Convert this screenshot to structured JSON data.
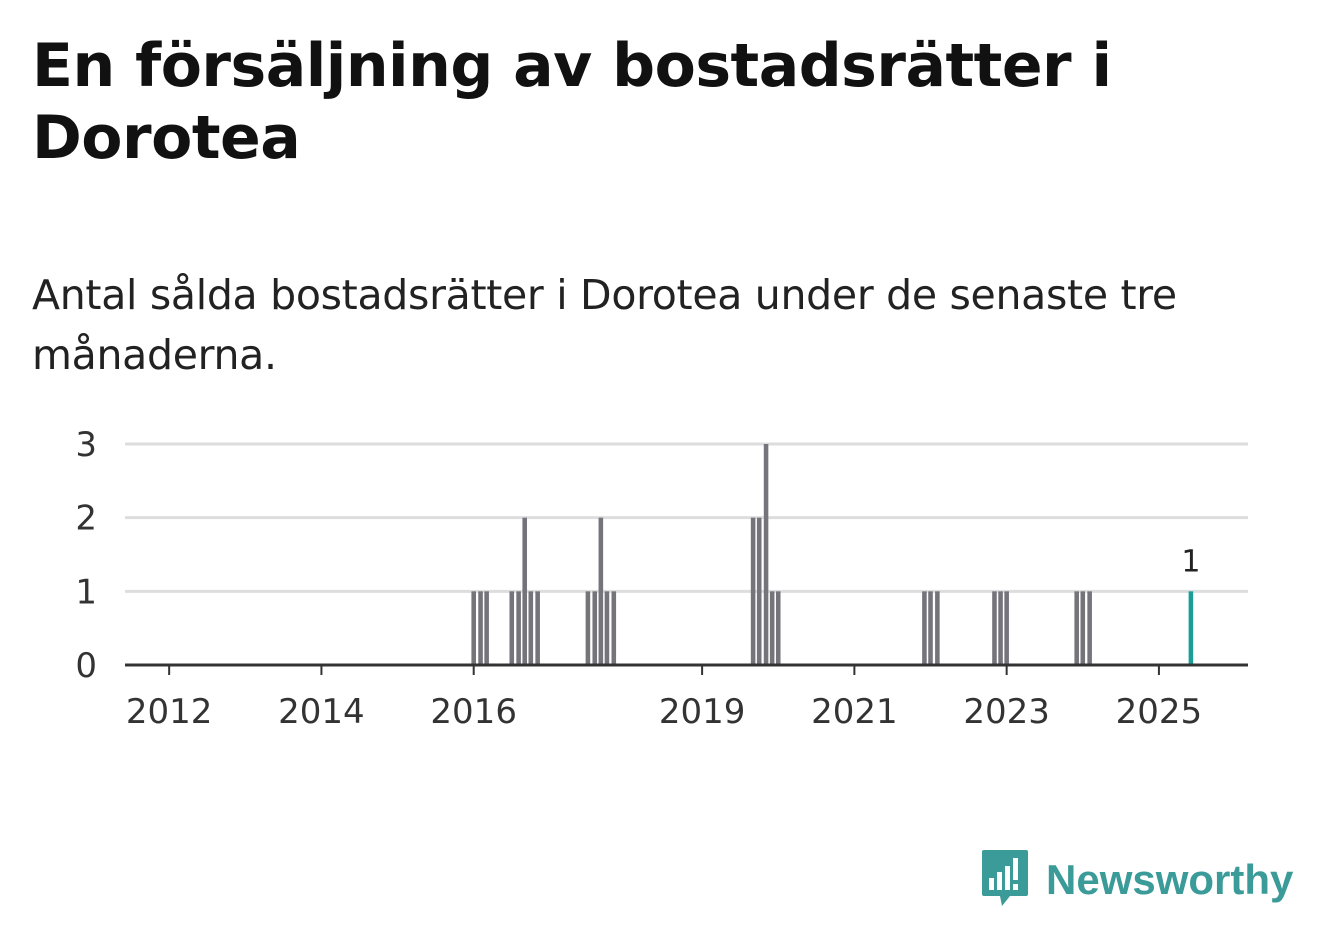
{
  "title": "En försäljning av bostadsrätter i Dorotea",
  "subtitle": "Antal sålda bostadsrätter i Dorotea under de senaste tre månaderna.",
  "brand": {
    "name": "Newsworthy",
    "color": "#3a9b98"
  },
  "colors": {
    "bar": "#75747b",
    "highlight": "#1a9e96",
    "grid": "#dddddd",
    "axis": "#333333"
  },
  "chart_data": {
    "type": "bar",
    "title": "En försäljning av bostadsrätter i Dorotea",
    "xlabel": "",
    "ylabel": "",
    "ylim": [
      0,
      3
    ],
    "yticks": [
      0,
      1,
      2,
      3
    ],
    "xlim": [
      2011.75,
      2026.5
    ],
    "xticks": [
      {
        "label": "2012",
        "value": 2012.33
      },
      {
        "label": "2014",
        "value": 2014.33
      },
      {
        "label": "2016",
        "value": 2016.33
      },
      {
        "label": "2019",
        "value": 2019.33
      },
      {
        "label": "2021",
        "value": 2021.33
      },
      {
        "label": "2023",
        "value": 2023.33
      },
      {
        "label": "2025",
        "value": 2025.33
      }
    ],
    "month_width": 0.0833,
    "series": [
      {
        "name": "Antal sålda bostadsrätter",
        "points": [
          {
            "t": 2016.33,
            "v": 1
          },
          {
            "t": 2016.42,
            "v": 1
          },
          {
            "t": 2016.5,
            "v": 1
          },
          {
            "t": 2016.83,
            "v": 1
          },
          {
            "t": 2016.92,
            "v": 1
          },
          {
            "t": 2017.0,
            "v": 2
          },
          {
            "t": 2017.08,
            "v": 1
          },
          {
            "t": 2017.17,
            "v": 1
          },
          {
            "t": 2017.83,
            "v": 1
          },
          {
            "t": 2017.92,
            "v": 1
          },
          {
            "t": 2018.0,
            "v": 2
          },
          {
            "t": 2018.08,
            "v": 1
          },
          {
            "t": 2018.17,
            "v": 1
          },
          {
            "t": 2020.0,
            "v": 2
          },
          {
            "t": 2020.08,
            "v": 2
          },
          {
            "t": 2020.17,
            "v": 3
          },
          {
            "t": 2020.25,
            "v": 1
          },
          {
            "t": 2020.33,
            "v": 1
          },
          {
            "t": 2022.25,
            "v": 1
          },
          {
            "t": 2022.33,
            "v": 1
          },
          {
            "t": 2022.42,
            "v": 1
          },
          {
            "t": 2023.17,
            "v": 1
          },
          {
            "t": 2023.25,
            "v": 1
          },
          {
            "t": 2023.33,
            "v": 1
          },
          {
            "t": 2024.25,
            "v": 1
          },
          {
            "t": 2024.33,
            "v": 1
          },
          {
            "t": 2024.42,
            "v": 1
          },
          {
            "t": 2025.75,
            "v": 1,
            "highlight": true,
            "label": "1"
          }
        ]
      }
    ]
  }
}
